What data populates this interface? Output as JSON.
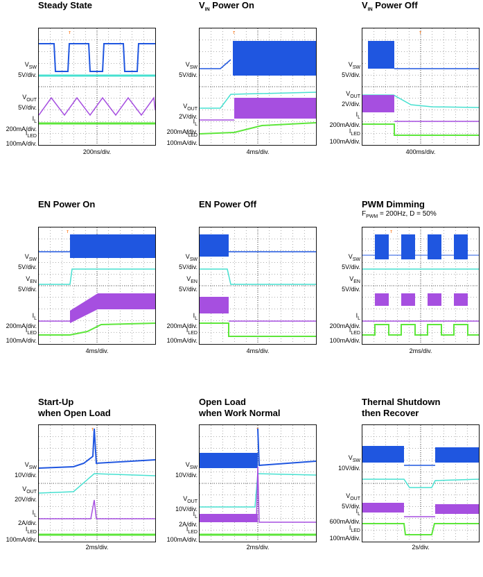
{
  "colors": {
    "sw": "#1f56e0",
    "vout": "#46e0d0",
    "il": "#a64fe0",
    "iled": "#5de63a",
    "trigger": "#ff6a00",
    "grid": "#555555"
  },
  "chart_data": [
    {
      "type": "line",
      "title": "Steady State",
      "subtitle": "",
      "timebase": "200ns/div.",
      "labels": [
        {
          "main": "V",
          "sub": "SW",
          "scale": "5V/div."
        },
        {
          "main": "V",
          "sub": "OUT",
          "scale": "5V/div."
        },
        {
          "main": "I",
          "sub": "L",
          "scale": "200mA/div."
        },
        {
          "main": "I",
          "sub": "LED",
          "scale": "100mA/div."
        }
      ]
    },
    {
      "type": "line",
      "title": "VIN Power On",
      "title_main": "V",
      "title_sub": "IN",
      "title_rest": " Power On",
      "subtitle": "",
      "timebase": "4ms/div.",
      "labels": [
        {
          "main": "V",
          "sub": "SW",
          "scale": "5V/div."
        },
        {
          "main": "V",
          "sub": "OUT",
          "scale": "2V/div."
        },
        {
          "main": "I",
          "sub": "L",
          "scale": "200mA/div."
        },
        {
          "main": "I",
          "sub": "LED",
          "scale": "100mA/div."
        }
      ]
    },
    {
      "type": "line",
      "title": "VIN Power Off",
      "title_main": "V",
      "title_sub": "IN",
      "title_rest": " Power Off",
      "subtitle": "",
      "timebase": "400ms/div.",
      "labels": [
        {
          "main": "V",
          "sub": "SW",
          "scale": "5V/div."
        },
        {
          "main": "V",
          "sub": "OUT",
          "scale": "2V/div."
        },
        {
          "main": "I",
          "sub": "L",
          "scale": "200mA/div."
        },
        {
          "main": "I",
          "sub": "LED",
          "scale": "100mA/div."
        }
      ]
    },
    {
      "type": "line",
      "title": "EN Power On",
      "subtitle": "",
      "timebase": "4ms/div.",
      "labels": [
        {
          "main": "V",
          "sub": "SW",
          "scale": "5V/div."
        },
        {
          "main": "V",
          "sub": "EN",
          "scale": "5V/div."
        },
        {
          "main": "I",
          "sub": "L",
          "scale": "200mA/div."
        },
        {
          "main": "I",
          "sub": "LED",
          "scale": "100mA/div."
        }
      ]
    },
    {
      "type": "line",
      "title": "EN Power Off",
      "subtitle": "",
      "timebase": "4ms/div.",
      "labels": [
        {
          "main": "V",
          "sub": "SW",
          "scale": "5V/div."
        },
        {
          "main": "V",
          "sub": "EN",
          "scale": "5V/div."
        },
        {
          "main": "I",
          "sub": "L",
          "scale": "200mA/div."
        },
        {
          "main": "I",
          "sub": "LED",
          "scale": "100mA/div."
        }
      ]
    },
    {
      "type": "line",
      "title": "PWM Dimming",
      "subtitle": "FPWM = 200Hz, D = 50%",
      "subtitle_main": "F",
      "subtitle_sub": "PWM",
      "subtitle_rest": " = 200Hz, D = 50%",
      "timebase": "2ms/div.",
      "labels": [
        {
          "main": "V",
          "sub": "SW",
          "scale": "5V/div."
        },
        {
          "main": "V",
          "sub": "EN",
          "scale": "5V/div."
        },
        {
          "main": "I",
          "sub": "L",
          "scale": "200mA/div."
        },
        {
          "main": "I",
          "sub": "LED",
          "scale": "100mA/div."
        }
      ]
    },
    {
      "type": "line",
      "title": "Start-Up\nwhen Open Load",
      "subtitle": "",
      "timebase": "2ms/div.",
      "labels": [
        {
          "main": "V",
          "sub": "SW",
          "scale": "10V/div."
        },
        {
          "main": "V",
          "sub": "OUT",
          "scale": "20V/div."
        },
        {
          "main": "I",
          "sub": "L",
          "scale": "2A/div."
        },
        {
          "main": "I",
          "sub": "LED",
          "scale": "100mA/div."
        }
      ]
    },
    {
      "type": "line",
      "title": "Open Load\nwhen Work Normal",
      "subtitle": "",
      "timebase": "2ms/div.",
      "labels": [
        {
          "main": "V",
          "sub": "SW",
          "scale": "10V/div."
        },
        {
          "main": "V",
          "sub": "OUT",
          "scale": "10V/div."
        },
        {
          "main": "I",
          "sub": "L",
          "scale": "2A/div."
        },
        {
          "main": "I",
          "sub": "LED",
          "scale": "100mA/div."
        }
      ]
    },
    {
      "type": "line",
      "title": "Thernal Shutdown\nthen Recover",
      "subtitle": "",
      "timebase": "2s/div.",
      "labels": [
        {
          "main": "V",
          "sub": "SW",
          "scale": "10V/div."
        },
        {
          "main": "V",
          "sub": "OUT",
          "scale": "5V/div."
        },
        {
          "main": "I",
          "sub": "L",
          "scale": "600mA/div."
        },
        {
          "main": "I",
          "sub": "LED",
          "scale": "100mA/div."
        }
      ]
    }
  ]
}
